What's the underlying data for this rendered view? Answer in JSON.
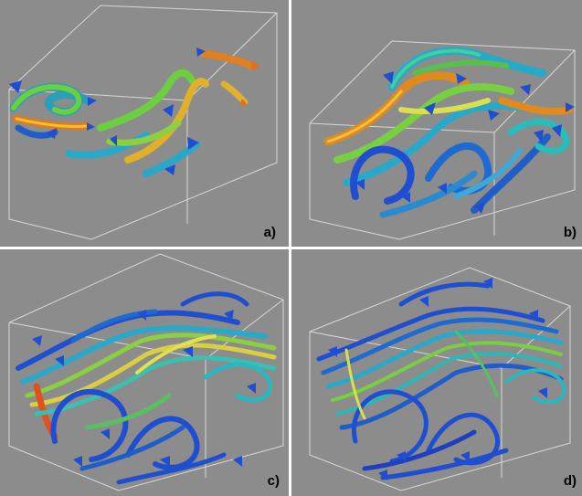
{
  "panels": [
    {
      "id": "a",
      "label": "a)"
    },
    {
      "id": "b",
      "label": "b)"
    },
    {
      "id": "c",
      "label": "c)"
    },
    {
      "id": "d",
      "label": "d)"
    }
  ]
}
